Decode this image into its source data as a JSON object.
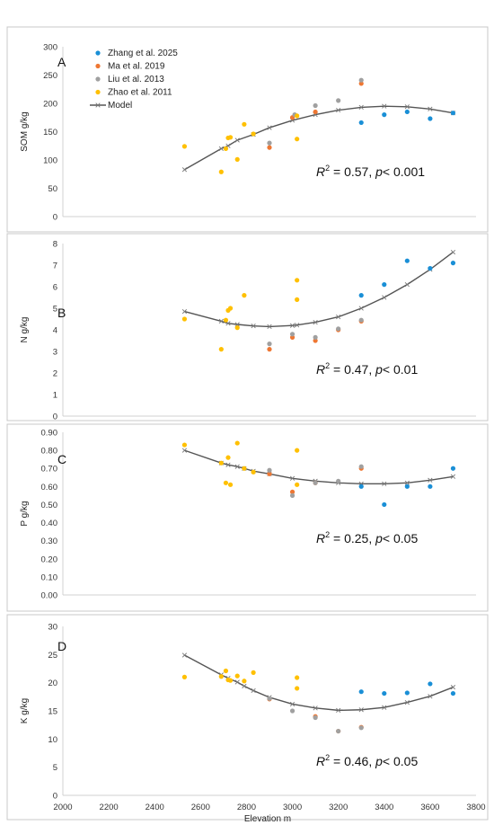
{
  "chart_data": [
    {
      "type": "scatter",
      "panel_label": "A",
      "ylabel": "SOM g/kg",
      "ylim": [
        0,
        300
      ],
      "yticks": [
        0,
        50,
        100,
        150,
        200,
        250,
        300
      ],
      "xlim": [
        2000,
        3800
      ],
      "stat": {
        "r2_label": "R",
        "r2_sup": "2",
        "r2_text": " = 0.57, ",
        "p_label": "p",
        "p_text": "< 0.001"
      },
      "series": [
        {
          "name": "Zhang et al. 2025",
          "color": "#1a8fd6",
          "points": [
            [
              3300,
              166
            ],
            [
              3400,
              180
            ],
            [
              3500,
              185
            ],
            [
              3600,
              173
            ],
            [
              3700,
              183
            ]
          ]
        },
        {
          "name": "Ma et al. 2019",
          "color": "#ee7733",
          "points": [
            [
              2900,
              122
            ],
            [
              3000,
              175
            ],
            [
              3100,
              185
            ],
            [
              3300,
              235
            ]
          ]
        },
        {
          "name": "Liu et al. 2013",
          "color": "#a0a0a0",
          "points": [
            [
              2900,
              130
            ],
            [
              3010,
              180
            ],
            [
              3100,
              196
            ],
            [
              3200,
              205
            ],
            [
              3300,
              241
            ]
          ]
        },
        {
          "name": "Zhao et al. 2011",
          "color": "#ffc000",
          "points": [
            [
              2530,
              124
            ],
            [
              2690,
              79
            ],
            [
              2710,
              120
            ],
            [
              2720,
              139
            ],
            [
              2730,
              140
            ],
            [
              2760,
              101
            ],
            [
              2790,
              163
            ],
            [
              2830,
              146
            ],
            [
              3020,
              137
            ],
            [
              3020,
              178
            ]
          ]
        },
        {
          "name": "Model",
          "color": "#555555",
          "line": true,
          "points": [
            [
              2530,
              83
            ],
            [
              2690,
              120
            ],
            [
              2720,
              125
            ],
            [
              2760,
              135
            ],
            [
              2830,
              145
            ],
            [
              2900,
              157
            ],
            [
              3000,
              170
            ],
            [
              3100,
              180
            ],
            [
              3200,
              188
            ],
            [
              3300,
              193
            ],
            [
              3400,
              195
            ],
            [
              3500,
              194
            ],
            [
              3600,
              190
            ],
            [
              3700,
              183
            ]
          ]
        }
      ]
    },
    {
      "type": "scatter",
      "panel_label": "B",
      "ylabel": "N g/kg",
      "ylim": [
        0,
        8
      ],
      "yticks": [
        0,
        1,
        2,
        3,
        4,
        5,
        6,
        7,
        8
      ],
      "xlim": [
        2000,
        3800
      ],
      "stat": {
        "r2_label": "R",
        "r2_sup": "2",
        "r2_text": " = 0.47, ",
        "p_label": "p",
        "p_text": "< 0.01"
      },
      "series": [
        {
          "name": "Zhang et al. 2025",
          "color": "#1a8fd6",
          "points": [
            [
              3300,
              5.6
            ],
            [
              3400,
              6.1
            ],
            [
              3500,
              7.2
            ],
            [
              3600,
              6.85
            ],
            [
              3700,
              7.1
            ]
          ]
        },
        {
          "name": "Ma et al. 2019",
          "color": "#ee7733",
          "points": [
            [
              2900,
              3.1
            ],
            [
              3000,
              3.65
            ],
            [
              3100,
              3.5
            ],
            [
              3200,
              4.0
            ],
            [
              3300,
              4.4
            ]
          ]
        },
        {
          "name": "Liu et al. 2013",
          "color": "#a0a0a0",
          "points": [
            [
              2900,
              3.35
            ],
            [
              3000,
              3.8
            ],
            [
              3100,
              3.65
            ],
            [
              3200,
              4.05
            ],
            [
              3300,
              4.45
            ]
          ]
        },
        {
          "name": "Zhao et al. 2011",
          "color": "#ffc000",
          "points": [
            [
              2530,
              4.5
            ],
            [
              2690,
              3.1
            ],
            [
              2710,
              4.45
            ],
            [
              2720,
              4.9
            ],
            [
              2730,
              5.0
            ],
            [
              2760,
              4.1
            ],
            [
              2790,
              5.6
            ],
            [
              3020,
              6.3
            ],
            [
              3020,
              5.4
            ]
          ]
        },
        {
          "name": "Model",
          "color": "#555555",
          "line": true,
          "points": [
            [
              2530,
              4.85
            ],
            [
              2690,
              4.4
            ],
            [
              2720,
              4.3
            ],
            [
              2760,
              4.25
            ],
            [
              2830,
              4.18
            ],
            [
              2900,
              4.15
            ],
            [
              3000,
              4.2
            ],
            [
              3020,
              4.22
            ],
            [
              3100,
              4.35
            ],
            [
              3200,
              4.6
            ],
            [
              3300,
              5.0
            ],
            [
              3400,
              5.5
            ],
            [
              3500,
              6.1
            ],
            [
              3600,
              6.8
            ],
            [
              3700,
              7.6
            ]
          ]
        }
      ]
    },
    {
      "type": "scatter",
      "panel_label": "C",
      "ylabel": "P g/kg",
      "ylim": [
        0,
        0.9
      ],
      "yticks": [
        0,
        0.1,
        0.2,
        0.3,
        0.4,
        0.5,
        0.6,
        0.7,
        0.8,
        0.9
      ],
      "ytick_decimals": 2,
      "xlim": [
        2000,
        3800
      ],
      "stat": {
        "r2_label": "R",
        "r2_sup": "2",
        "r2_text": " = 0.25, ",
        "p_label": "p",
        "p_text": "< 0.05"
      },
      "series": [
        {
          "name": "Zhang et al. 2025",
          "color": "#1a8fd6",
          "points": [
            [
              3300,
              0.6
            ],
            [
              3400,
              0.5
            ],
            [
              3500,
              0.6
            ],
            [
              3600,
              0.6
            ],
            [
              3700,
              0.7
            ]
          ]
        },
        {
          "name": "Ma et al. 2019",
          "color": "#ee7733",
          "points": [
            [
              2900,
              0.67
            ],
            [
              3000,
              0.57
            ],
            [
              3100,
              0.62
            ],
            [
              3300,
              0.7
            ]
          ]
        },
        {
          "name": "Liu et al. 2013",
          "color": "#a0a0a0",
          "points": [
            [
              2900,
              0.69
            ],
            [
              3000,
              0.55
            ],
            [
              3100,
              0.62
            ],
            [
              3200,
              0.63
            ],
            [
              3300,
              0.71
            ]
          ]
        },
        {
          "name": "Zhao et al. 2011",
          "color": "#ffc000",
          "points": [
            [
              2530,
              0.83
            ],
            [
              2690,
              0.73
            ],
            [
              2710,
              0.62
            ],
            [
              2720,
              0.76
            ],
            [
              2730,
              0.61
            ],
            [
              2760,
              0.84
            ],
            [
              2790,
              0.7
            ],
            [
              2830,
              0.68
            ],
            [
              3020,
              0.8
            ],
            [
              3020,
              0.61
            ]
          ]
        },
        {
          "name": "Model",
          "color": "#555555",
          "line": true,
          "points": [
            [
              2530,
              0.8
            ],
            [
              2690,
              0.73
            ],
            [
              2720,
              0.72
            ],
            [
              2760,
              0.71
            ],
            [
              2790,
              0.7
            ],
            [
              2830,
              0.685
            ],
            [
              2900,
              0.67
            ],
            [
              3000,
              0.645
            ],
            [
              3100,
              0.63
            ],
            [
              3200,
              0.62
            ],
            [
              3300,
              0.615
            ],
            [
              3400,
              0.615
            ],
            [
              3500,
              0.62
            ],
            [
              3600,
              0.635
            ],
            [
              3700,
              0.655
            ]
          ]
        }
      ]
    },
    {
      "type": "scatter",
      "panel_label": "D",
      "ylabel": "K g/kg",
      "ylim": [
        0,
        30
      ],
      "yticks": [
        0,
        5,
        10,
        15,
        20,
        25,
        30
      ],
      "xlim": [
        2000,
        3800
      ],
      "xticks": [
        2000,
        2200,
        2400,
        2600,
        2800,
        3000,
        3200,
        3400,
        3600,
        3800
      ],
      "xlabel": "Elevation m",
      "stat": {
        "r2_label": "R",
        "r2_sup": "2",
        "r2_text": " = 0.46, ",
        "p_label": "p",
        "p_text": "< 0.05"
      },
      "series": [
        {
          "name": "Zhang et al. 2025",
          "color": "#1a8fd6",
          "points": [
            [
              3300,
              18.4
            ],
            [
              3400,
              18.1
            ],
            [
              3500,
              18.2
            ],
            [
              3600,
              19.8
            ],
            [
              3700,
              18.1
            ]
          ]
        },
        {
          "name": "Ma et al. 2019",
          "color": "#ee7733",
          "points": [
            [
              2900,
              17.1
            ],
            [
              3100,
              14.0
            ],
            [
              3200,
              11.4
            ],
            [
              3300,
              12.1
            ]
          ]
        },
        {
          "name": "Liu et al. 2013",
          "color": "#a0a0a0",
          "points": [
            [
              2900,
              17.2
            ],
            [
              3000,
              15.0
            ],
            [
              3100,
              13.8
            ],
            [
              3200,
              11.4
            ],
            [
              3300,
              12.0
            ]
          ]
        },
        {
          "name": "Zhao et al. 2011",
          "color": "#ffc000",
          "points": [
            [
              2530,
              21.0
            ],
            [
              2690,
              21.1
            ],
            [
              2710,
              22.1
            ],
            [
              2720,
              20.5
            ],
            [
              2730,
              20.4
            ],
            [
              2760,
              21.2
            ],
            [
              2790,
              20.3
            ],
            [
              2830,
              21.8
            ],
            [
              3020,
              20.9
            ],
            [
              3020,
              19.0
            ]
          ]
        },
        {
          "name": "Model",
          "color": "#555555",
          "line": true,
          "points": [
            [
              2530,
              24.9
            ],
            [
              2690,
              21.4
            ],
            [
              2720,
              20.8
            ],
            [
              2760,
              20.1
            ],
            [
              2790,
              19.4
            ],
            [
              2830,
              18.6
            ],
            [
              2900,
              17.4
            ],
            [
              3000,
              16.2
            ],
            [
              3100,
              15.5
            ],
            [
              3200,
              15.1
            ],
            [
              3300,
              15.2
            ],
            [
              3400,
              15.6
            ],
            [
              3500,
              16.5
            ],
            [
              3600,
              17.6
            ],
            [
              3700,
              19.2
            ]
          ]
        }
      ]
    }
  ],
  "legend": [
    {
      "label": "Zhang et al. 2025",
      "color": "#1a8fd6",
      "kind": "dot"
    },
    {
      "label": "Ma et al. 2019",
      "color": "#ee7733",
      "kind": "dot"
    },
    {
      "label": "Liu et al. 2013",
      "color": "#a0a0a0",
      "kind": "dot"
    },
    {
      "label": "Zhao et al. 2011",
      "color": "#ffc000",
      "kind": "dot"
    },
    {
      "label": "Model",
      "color": "#555555",
      "kind": "line"
    }
  ],
  "colors": {
    "frame": "#c8c8c8",
    "axis": "#d0d0d0",
    "model_marker": "#777777"
  }
}
